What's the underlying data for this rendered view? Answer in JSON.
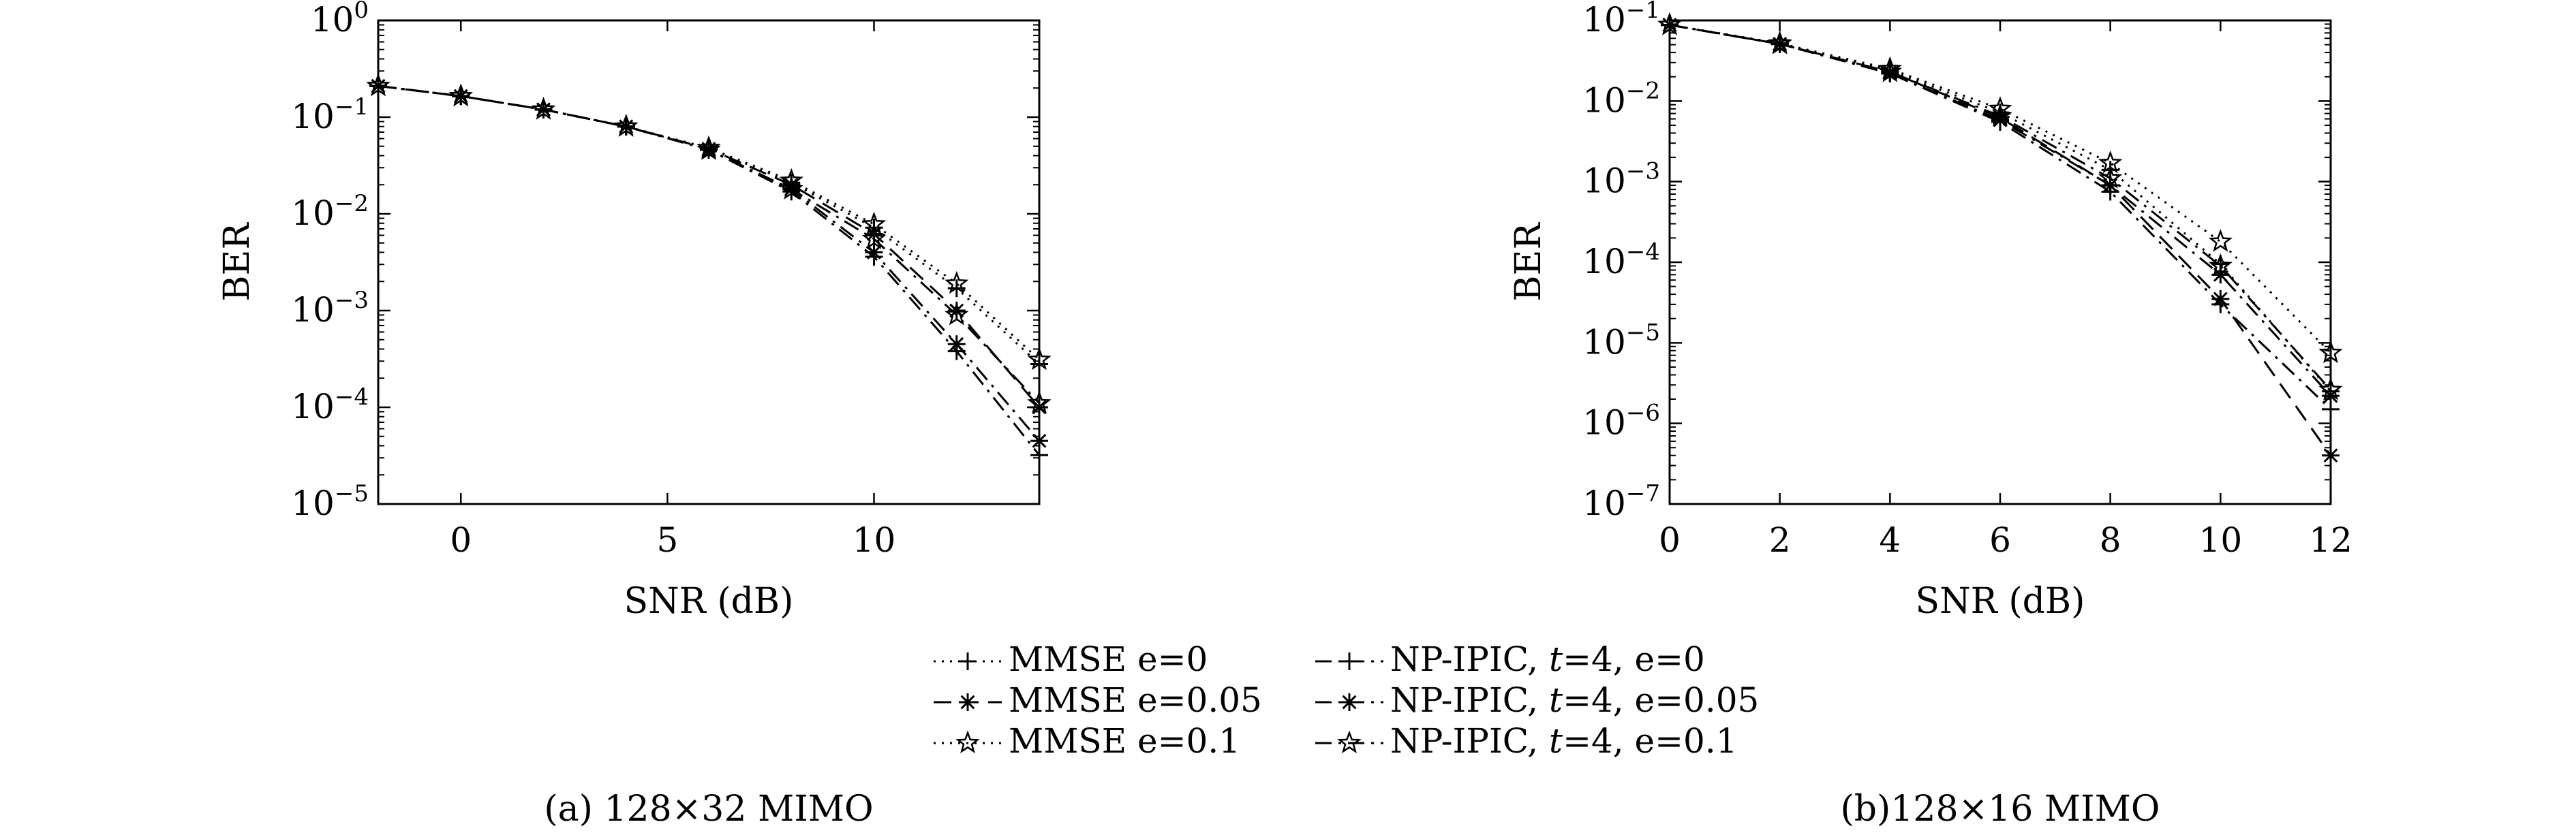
{
  "chart_data": [
    {
      "type": "line",
      "subplot": "a",
      "caption": "(a) 128×32 MIMO",
      "xlabel": "SNR (dB)",
      "ylabel": "BER",
      "yscale": "log",
      "xlim": [
        -2,
        14
      ],
      "ylim": [
        1e-05,
        1
      ],
      "xticks": [
        0,
        5,
        10
      ],
      "xtick_labels": [
        "0",
        "5",
        "10"
      ],
      "yticks": [
        1,
        0.1,
        0.01,
        0.001,
        0.0001,
        1e-05
      ],
      "ytick_bases": [
        "10",
        "10",
        "10",
        "10",
        "10",
        "10"
      ],
      "ytick_exponents": [
        "0",
        "−1",
        "−2",
        "−3",
        "−4",
        "−5"
      ],
      "grid": false,
      "x": [
        -2,
        0,
        2,
        4,
        6,
        8,
        10,
        12,
        14
      ],
      "series": [
        {
          "name": "MMSE e=0",
          "dash": "dotted",
          "marker": "plus",
          "values": [
            0.21,
            0.165,
            0.12,
            0.08,
            0.048,
            0.021,
            0.0072,
            0.0017,
            0.00028
          ]
        },
        {
          "name": "MMSE e=0.05",
          "dash": "dashed",
          "marker": "asterisk",
          "values": [
            0.21,
            0.165,
            0.12,
            0.08,
            0.047,
            0.02,
            0.0062,
            0.001,
            0.0001
          ]
        },
        {
          "name": "MMSE e=0.1",
          "dash": "dotted",
          "marker": "star",
          "values": [
            0.21,
            0.165,
            0.12,
            0.08,
            0.048,
            0.022,
            0.0078,
            0.0019,
            0.00031
          ]
        },
        {
          "name": "NP-IPIC, t=4, e=0",
          "dash": "dashdot",
          "marker": "plus",
          "values": [
            0.21,
            0.165,
            0.12,
            0.08,
            0.046,
            0.017,
            0.0036,
            0.00038,
            3.2e-05
          ]
        },
        {
          "name": "NP-IPIC, t=4, e=0.05",
          "dash": "dashdot",
          "marker": "asterisk",
          "values": [
            0.21,
            0.165,
            0.12,
            0.08,
            0.046,
            0.018,
            0.004,
            0.00045,
            4.5e-05
          ]
        },
        {
          "name": "NP-IPIC, t=4, e=0.1",
          "dash": "dashdot",
          "marker": "star",
          "values": [
            0.21,
            0.165,
            0.12,
            0.08,
            0.046,
            0.018,
            0.0055,
            0.0009,
            0.00011
          ]
        }
      ]
    },
    {
      "type": "line",
      "subplot": "b",
      "caption": "(b)128×16 MIMO",
      "xlabel": "SNR (dB)",
      "ylabel": "BER",
      "yscale": "log",
      "xlim": [
        0,
        12
      ],
      "ylim": [
        1e-07,
        0.1
      ],
      "xticks": [
        0,
        2,
        4,
        6,
        8,
        10,
        12
      ],
      "xtick_labels": [
        "0",
        "2",
        "4",
        "6",
        "8",
        "10",
        "12"
      ],
      "yticks": [
        0.1,
        0.01,
        0.001,
        0.0001,
        1e-05,
        1e-06,
        1e-07
      ],
      "ytick_bases": [
        "10",
        "10",
        "10",
        "10",
        "10",
        "10",
        "10"
      ],
      "ytick_exponents": [
        "−1",
        "−2",
        "−3",
        "−4",
        "−5",
        "−6",
        "−7"
      ],
      "grid": false,
      "x": [
        0,
        2,
        4,
        6,
        8,
        10,
        12
      ],
      "series": [
        {
          "name": "MMSE e=0",
          "dash": "dotted",
          "marker": "plus",
          "values": [
            0.088,
            0.052,
            0.024,
            0.0072,
            0.0014,
            9.5e-05,
            2.5e-06
          ]
        },
        {
          "name": "MMSE e=0.05",
          "dash": "dashed",
          "marker": "asterisk",
          "values": [
            0.088,
            0.051,
            0.023,
            0.0062,
            0.0009,
            3.5e-05,
            4e-07
          ]
        },
        {
          "name": "MMSE e=0.1",
          "dash": "dotted",
          "marker": "star",
          "values": [
            0.088,
            0.052,
            0.025,
            0.008,
            0.0017,
            0.00018,
            7.5e-06
          ]
        },
        {
          "name": "NP-IPIC, t=4, e=0",
          "dash": "dashdot",
          "marker": "plus",
          "values": [
            0.088,
            0.051,
            0.022,
            0.0055,
            0.00075,
            3e-05,
            1.5e-06
          ]
        },
        {
          "name": "NP-IPIC, t=4, e=0.05",
          "dash": "dashdot",
          "marker": "asterisk",
          "values": [
            0.088,
            0.051,
            0.022,
            0.0058,
            0.0009,
            7e-05,
            2.2e-06
          ]
        },
        {
          "name": "NP-IPIC, t=4, e=0.1",
          "dash": "dashdot",
          "marker": "star",
          "values": [
            0.088,
            0.051,
            0.023,
            0.0065,
            0.0011,
            9e-05,
            2.6e-06
          ]
        }
      ]
    }
  ],
  "legend": {
    "entries": [
      {
        "pre": "MMSE e=0",
        "italic": "",
        "post": "",
        "dash": "dotted",
        "marker": "plus"
      },
      {
        "pre": "MMSE e=0.05",
        "italic": "",
        "post": "",
        "dash": "dashed",
        "marker": "asterisk"
      },
      {
        "pre": "MMSE e=0.1",
        "italic": "",
        "post": "",
        "dash": "dotted",
        "marker": "star"
      },
      {
        "pre": "NP-IPIC, ",
        "italic": "t",
        "post": "=4, e=0",
        "dash": "dashdot",
        "marker": "plus"
      },
      {
        "pre": "NP-IPIC, ",
        "italic": "t",
        "post": "=4, e=0.05",
        "dash": "dashdot",
        "marker": "asterisk"
      },
      {
        "pre": "NP-IPIC, ",
        "italic": "t",
        "post": "=4, e=0.1",
        "dash": "dashdot",
        "marker": "star"
      }
    ]
  }
}
